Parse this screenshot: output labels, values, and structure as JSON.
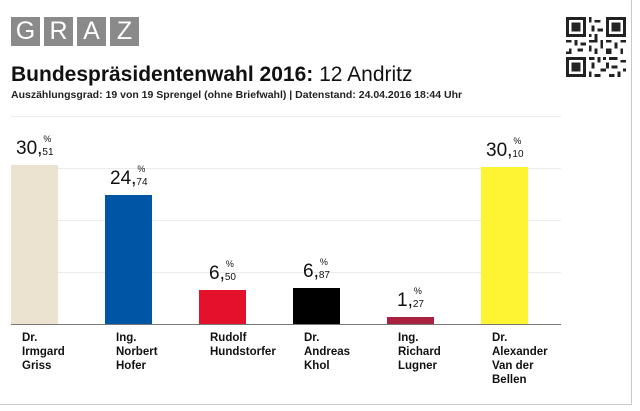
{
  "logo": {
    "letters": [
      "G",
      "R",
      "A",
      "Z"
    ]
  },
  "header": {
    "title_bold": "Bundespräsidentenwahl 2016:",
    "title_rest": "12 Andritz",
    "subtitle": "Auszählungsgrad: 19 von 19 Sprengel (ohne Briefwahl) | Datenstand: 24.04.2016 18:44 Uhr"
  },
  "chart_data": {
    "type": "bar",
    "title": "Bundespräsidentenwahl 2016: 12 Andritz",
    "xlabel": "",
    "ylabel": "",
    "unit": "%",
    "ylim": [
      0,
      40
    ],
    "categories": [
      [
        "Dr.",
        "Irmgard",
        "Griss"
      ],
      [
        "Ing.",
        "Norbert",
        "Hofer"
      ],
      [
        "Rudolf",
        "Hundstorfer"
      ],
      [
        "Dr.",
        "Andreas",
        "Khol"
      ],
      [
        "Ing.",
        "Richard",
        "Lugner"
      ],
      [
        "Dr.",
        "Alexander",
        "Van der",
        "Bellen"
      ]
    ],
    "values": [
      30.51,
      24.74,
      6.5,
      6.87,
      1.27,
      30.1
    ],
    "value_labels": [
      {
        "int": "30,",
        "dec": "51"
      },
      {
        "int": "24,",
        "dec": "74"
      },
      {
        "int": "6,",
        "dec": "50"
      },
      {
        "int": "6,",
        "dec": "87"
      },
      {
        "int": "1,",
        "dec": "27"
      },
      {
        "int": "30,",
        "dec": "10"
      }
    ],
    "colors": [
      "#ebe3cf",
      "#0056a4",
      "#e4112b",
      "#000000",
      "#a8213e",
      "#fef434"
    ],
    "grid": true,
    "legend": "none"
  }
}
